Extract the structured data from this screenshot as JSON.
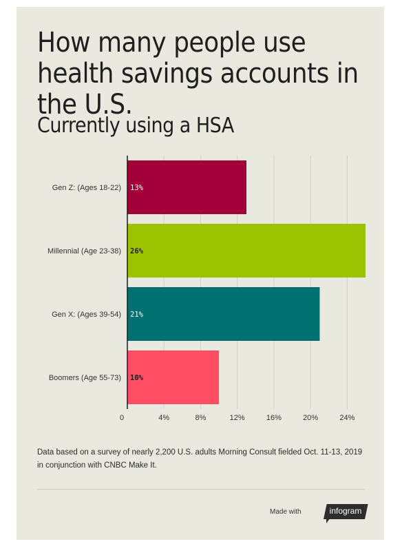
{
  "header": {
    "title": "How many people use health savings accounts in the U.S.",
    "subtitle": "Currently using a HSA"
  },
  "chart_data": {
    "type": "bar",
    "orientation": "horizontal",
    "categories": [
      "Gen Z: (Ages 18-22)",
      "Millennial (Age 23-38)",
      "Gen X: (Ages 39-54)",
      "Boomers (Age 55-73)"
    ],
    "values": [
      13,
      26,
      21,
      10
    ],
    "data_labels": [
      "13%",
      "26%",
      "21%",
      "10%"
    ],
    "colors": [
      "#a3003a",
      "#9dc200",
      "#007070",
      "#ff4d63"
    ],
    "label_colors": [
      "#ffffff",
      "#1f1f1f",
      "#ffffff",
      "#1f1f1f"
    ],
    "xlim": [
      0,
      26
    ],
    "xticks": [
      0,
      4,
      8,
      12,
      16,
      20,
      24
    ],
    "xtick_labels": [
      "0",
      "4%",
      "8%",
      "12%",
      "16%",
      "20%",
      "24%"
    ],
    "grid": true,
    "legend": "none"
  },
  "footer": {
    "note": "Data based on a survey of nearly 2,200 U.S. adults Morning Consult fielded Oct. 11-13, 2019 in conjunction with CNBC Make It.",
    "made_with": "Made with",
    "brand": "infogram"
  }
}
